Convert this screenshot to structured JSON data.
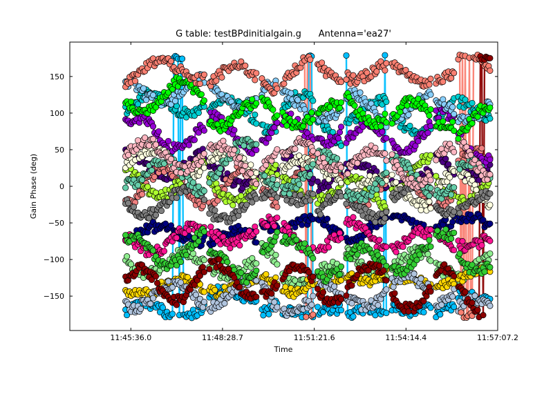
{
  "chart_data": {
    "type": "scatter",
    "title": "G table: testBPdinitialgain.g      Antenna='ea27'",
    "xlabel": "Time",
    "ylabel": "Gain Phase (deg)",
    "x_ticks": [
      "11:45:36.0",
      "11:48:28.7",
      "11:51:21.6",
      "11:54:14.4",
      "11:57:07.2"
    ],
    "x_tick_seconds": [
      0,
      172.7,
      345.6,
      518.4,
      691.2
    ],
    "xlim_seconds": [
      -115,
      691.2
    ],
    "y_ticks": [
      -150,
      -100,
      -50,
      0,
      50,
      100,
      150
    ],
    "ylim": [
      -197,
      197
    ],
    "grid": false,
    "legend": "none",
    "scan_segments_seconds": [
      [
        -10,
        140
      ],
      [
        148,
        237
      ],
      [
        247,
        278
      ],
      [
        286,
        345
      ],
      [
        352,
        398
      ],
      [
        406,
        484
      ],
      [
        492,
        567
      ],
      [
        575,
        610
      ],
      [
        617,
        679
      ]
    ],
    "series": [
      {
        "color": "#8b0000",
        "offset": -135,
        "amplitude": 25,
        "trend": 0
      },
      {
        "color": "#fa8072",
        "offset": 160,
        "amplitude": 15,
        "trend": 0
      },
      {
        "color": "#00ff00",
        "offset": 120,
        "amplitude": 20,
        "trend": -30
      },
      {
        "color": "#87cefa",
        "offset": 130,
        "amplitude": 15,
        "trend": -30
      },
      {
        "color": "#ffb6c1",
        "offset": 50,
        "amplitude": 20,
        "trend": -10
      },
      {
        "color": "#66cdaa",
        "offset": 25,
        "amplitude": 20,
        "trend": -20
      },
      {
        "color": "#808080",
        "offset": -20,
        "amplitude": 15,
        "trend": 0
      },
      {
        "color": "#32cd32",
        "offset": -90,
        "amplitude": 20,
        "trend": -10
      },
      {
        "color": "#ffffe0",
        "offset": 35,
        "amplitude": 15,
        "trend": -40
      },
      {
        "color": "#b0c4de",
        "offset": -150,
        "amplitude": 15,
        "trend": 0
      },
      {
        "color": "#ff1493",
        "offset": -70,
        "amplitude": 15,
        "trend": 0
      },
      {
        "color": "#9400d3",
        "offset": 70,
        "amplitude": 20,
        "trend": 0
      },
      {
        "color": "#000080",
        "offset": -60,
        "amplitude": 10,
        "trend": 0
      },
      {
        "color": "#ffd700",
        "offset": -130,
        "amplitude": 10,
        "trend": 0
      },
      {
        "color": "#adff2f",
        "offset": 10,
        "amplitude": 20,
        "trend": -15
      },
      {
        "color": "#00bfff",
        "offset": -165,
        "amplitude": 10,
        "trend": 0
      },
      {
        "color": "#f08080",
        "offset": 0,
        "amplitude": 25,
        "trend": 10
      },
      {
        "color": "#90ee90",
        "offset": -110,
        "amplitude": 15,
        "trend": 0
      },
      {
        "color": "#4b0082",
        "offset": 20,
        "amplitude": 15,
        "trend": 0
      },
      {
        "color": "#00ced1",
        "offset": 100,
        "amplitude": 15,
        "trend": 0
      }
    ]
  }
}
